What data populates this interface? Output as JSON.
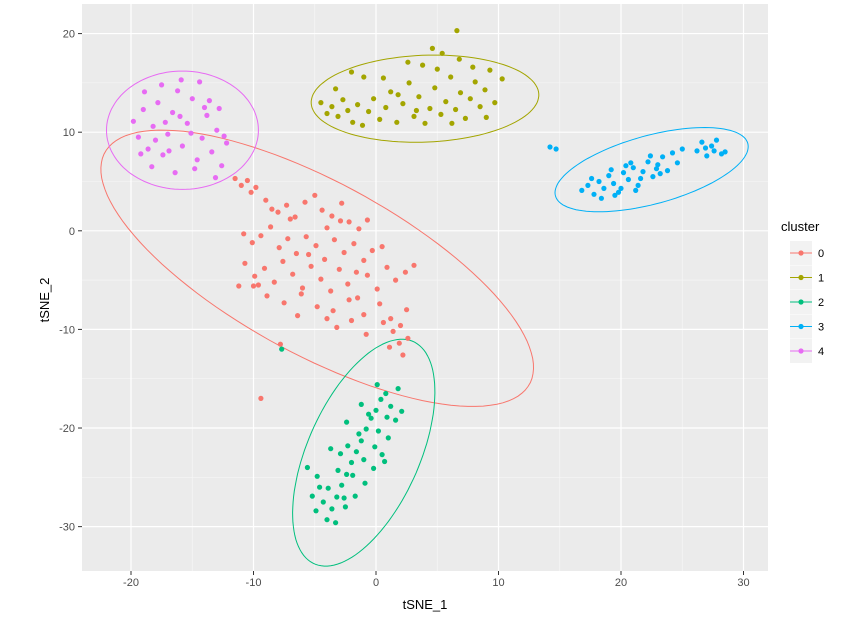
{
  "chart_data": {
    "type": "scatter",
    "xlabel": "tSNE_1",
    "ylabel": "tSNE_2",
    "xlim": [
      -24,
      32
    ],
    "ylim": [
      -34.5,
      23
    ],
    "x_ticks": [
      -20,
      -10,
      0,
      10,
      20,
      30
    ],
    "y_ticks": [
      -30,
      -20,
      -10,
      0,
      10,
      20
    ],
    "x_tick_labels": [
      "-20",
      "-10",
      "0",
      "10",
      "20",
      "30"
    ],
    "y_tick_labels": [
      "-30",
      "-20",
      "-10",
      "0",
      "10",
      "20"
    ],
    "grid": true,
    "background": "#ebebeb",
    "legend": {
      "title": "cluster",
      "position": "right"
    },
    "series": [
      {
        "name": "0",
        "color": "#F8766D",
        "ellipse": {
          "cx": -4.8,
          "cy": -3.8,
          "rx": 21.0,
          "ry": 8.2,
          "angle": -36
        },
        "points": [
          [
            -11.5,
            5.3
          ],
          [
            -11.0,
            4.6
          ],
          [
            -10.5,
            5.1
          ],
          [
            -10.2,
            3.9
          ],
          [
            -9.8,
            4.4
          ],
          [
            -9.0,
            3.1
          ],
          [
            -8.5,
            2.2
          ],
          [
            -8.0,
            1.9
          ],
          [
            -7.3,
            2.6
          ],
          [
            -6.6,
            1.4
          ],
          [
            -5.8,
            2.9
          ],
          [
            -5.0,
            3.6
          ],
          [
            -4.4,
            2.1
          ],
          [
            -3.6,
            1.5
          ],
          [
            -2.8,
            2.8
          ],
          [
            -2.2,
            0.9
          ],
          [
            -1.4,
            0.2
          ],
          [
            -0.7,
            1.1
          ],
          [
            -10.8,
            -0.3
          ],
          [
            -10.1,
            -1.2
          ],
          [
            -9.4,
            -0.5
          ],
          [
            -8.6,
            0.4
          ],
          [
            -7.9,
            -1.7
          ],
          [
            -7.2,
            -0.8
          ],
          [
            -6.5,
            -2.3
          ],
          [
            -5.7,
            -0.6
          ],
          [
            -4.9,
            -1.5
          ],
          [
            -4.2,
            -2.9
          ],
          [
            -3.4,
            -0.9
          ],
          [
            -2.6,
            -2.2
          ],
          [
            -1.8,
            -1.3
          ],
          [
            -1.0,
            -3.0
          ],
          [
            -0.3,
            -2.0
          ],
          [
            -10.7,
            -3.3
          ],
          [
            -9.9,
            -4.6
          ],
          [
            -9.1,
            -3.8
          ],
          [
            -8.3,
            -5.2
          ],
          [
            -7.6,
            -3.1
          ],
          [
            -6.8,
            -4.4
          ],
          [
            -6.0,
            -5.8
          ],
          [
            -5.3,
            -3.6
          ],
          [
            -4.5,
            -4.9
          ],
          [
            -3.7,
            -6.1
          ],
          [
            -3.0,
            -3.9
          ],
          [
            -2.3,
            -5.4
          ],
          [
            -1.5,
            -6.8
          ],
          [
            -0.7,
            -4.5
          ],
          [
            0.1,
            -5.9
          ],
          [
            0.9,
            -3.7
          ],
          [
            1.6,
            -5.0
          ],
          [
            2.4,
            -4.2
          ],
          [
            3.1,
            -3.5
          ],
          [
            -10.0,
            -5.6
          ],
          [
            -8.9,
            -6.6
          ],
          [
            -7.5,
            -7.3
          ],
          [
            -6.1,
            -6.4
          ],
          [
            -4.8,
            -7.7
          ],
          [
            -3.5,
            -8.1
          ],
          [
            -2.2,
            -7.0
          ],
          [
            -1.0,
            -8.5
          ],
          [
            0.3,
            -7.4
          ],
          [
            1.2,
            -8.9
          ],
          [
            2.0,
            -9.6
          ],
          [
            2.5,
            -8.0
          ],
          [
            1.4,
            -10.2
          ],
          [
            0.6,
            -9.3
          ],
          [
            -0.8,
            -10.5
          ],
          [
            -2.0,
            -9.1
          ],
          [
            -3.2,
            -9.8
          ],
          [
            -4.0,
            -8.9
          ],
          [
            1.9,
            -11.4
          ],
          [
            2.6,
            -10.9
          ],
          [
            1.1,
            -11.8
          ],
          [
            2.2,
            -12.6
          ],
          [
            -9.6,
            -5.5
          ],
          [
            -5.5,
            -2.4
          ],
          [
            -2.9,
            1.0
          ],
          [
            -7.0,
            1.2
          ],
          [
            -4.0,
            0.3
          ],
          [
            0.5,
            -1.6
          ],
          [
            -1.6,
            -4.2
          ],
          [
            -6.4,
            -8.6
          ],
          [
            -11.2,
            -5.6
          ],
          [
            -7.8,
            -11.5
          ],
          [
            -9.4,
            -17.0
          ]
        ]
      },
      {
        "name": "1",
        "color": "#A3A500",
        "ellipse": {
          "cx": 4.0,
          "cy": 13.4,
          "rx": 9.3,
          "ry": 4.4,
          "angle": 3
        },
        "points": [
          [
            -4.5,
            13.0
          ],
          [
            -4.0,
            11.9
          ],
          [
            -3.6,
            12.6
          ],
          [
            -3.1,
            11.6
          ],
          [
            -2.7,
            13.3
          ],
          [
            -2.3,
            12.2
          ],
          [
            -1.9,
            11.0
          ],
          [
            -1.5,
            12.8
          ],
          [
            -1.1,
            10.7
          ],
          [
            -0.6,
            12.1
          ],
          [
            -0.2,
            13.4
          ],
          [
            0.3,
            11.3
          ],
          [
            0.8,
            12.5
          ],
          [
            1.2,
            14.1
          ],
          [
            1.7,
            11.0
          ],
          [
            2.2,
            12.9
          ],
          [
            2.7,
            15.0
          ],
          [
            3.1,
            11.6
          ],
          [
            3.5,
            13.6
          ],
          [
            4.0,
            10.9
          ],
          [
            4.4,
            12.4
          ],
          [
            4.8,
            14.5
          ],
          [
            5.3,
            11.8
          ],
          [
            5.7,
            13.1
          ],
          [
            6.1,
            15.6
          ],
          [
            6.5,
            12.3
          ],
          [
            6.9,
            14.0
          ],
          [
            7.3,
            11.4
          ],
          [
            7.7,
            13.4
          ],
          [
            8.1,
            15.1
          ],
          [
            8.5,
            12.6
          ],
          [
            8.9,
            14.3
          ],
          [
            9.3,
            16.3
          ],
          [
            9.7,
            13.0
          ],
          [
            10.3,
            15.4
          ],
          [
            5.0,
            16.4
          ],
          [
            3.8,
            16.8
          ],
          [
            2.6,
            17.1
          ],
          [
            -2.0,
            16.1
          ],
          [
            -1.0,
            15.6
          ],
          [
            0.6,
            15.5
          ],
          [
            7.9,
            16.6
          ],
          [
            6.8,
            17.4
          ],
          [
            4.6,
            18.5
          ],
          [
            5.4,
            18.0
          ],
          [
            1.8,
            13.8
          ],
          [
            3.3,
            12.2
          ],
          [
            -3.3,
            14.4
          ],
          [
            9.0,
            11.5
          ],
          [
            6.2,
            10.9
          ],
          [
            6.6,
            20.3
          ]
        ]
      },
      {
        "name": "2",
        "color": "#00BF7D",
        "ellipse": {
          "cx": -1.0,
          "cy": -22.5,
          "rx": 12.0,
          "ry": 4.7,
          "angle": 72
        },
        "points": [
          [
            -4.0,
            -29.3
          ],
          [
            -3.6,
            -28.2
          ],
          [
            -3.2,
            -27.0
          ],
          [
            -2.8,
            -25.8
          ],
          [
            -2.4,
            -24.7
          ],
          [
            -2.0,
            -23.5
          ],
          [
            -1.6,
            -22.4
          ],
          [
            -1.2,
            -21.3
          ],
          [
            -0.8,
            -20.1
          ],
          [
            -0.4,
            -19.0
          ],
          [
            0.0,
            -18.2
          ],
          [
            0.4,
            -17.1
          ],
          [
            0.8,
            -16.5
          ],
          [
            1.2,
            -17.8
          ],
          [
            1.6,
            -19.2
          ],
          [
            1.0,
            -21.0
          ],
          [
            0.5,
            -22.7
          ],
          [
            -0.2,
            -24.1
          ],
          [
            -0.9,
            -25.6
          ],
          [
            -1.7,
            -26.9
          ],
          [
            -2.5,
            -28.0
          ],
          [
            -3.3,
            -29.6
          ],
          [
            -4.3,
            -27.5
          ],
          [
            -3.9,
            -26.1
          ],
          [
            -3.1,
            -24.3
          ],
          [
            -2.3,
            -21.8
          ],
          [
            -1.4,
            -20.6
          ],
          [
            -0.6,
            -18.6
          ],
          [
            0.2,
            -20.3
          ],
          [
            -4.6,
            -26.0
          ],
          [
            -5.6,
            -24.0
          ],
          [
            -4.8,
            -24.9
          ],
          [
            -2.9,
            -22.6
          ],
          [
            -1.9,
            -24.8
          ],
          [
            -1.0,
            -23.2
          ],
          [
            -0.1,
            -21.9
          ],
          [
            0.9,
            -18.9
          ],
          [
            1.8,
            -16.0
          ],
          [
            0.1,
            -15.6
          ],
          [
            -2.4,
            -19.4
          ],
          [
            -1.2,
            -17.6
          ],
          [
            -3.7,
            -22.1
          ],
          [
            -4.9,
            -28.4
          ],
          [
            -5.2,
            -26.9
          ],
          [
            -2.6,
            -27.1
          ],
          [
            0.7,
            -23.4
          ],
          [
            2.1,
            -18.3
          ],
          [
            -7.7,
            -12.0
          ]
        ]
      },
      {
        "name": "3",
        "color": "#00B0F6",
        "ellipse": {
          "cx": 22.5,
          "cy": 6.2,
          "rx": 8.3,
          "ry": 3.4,
          "angle": 20
        },
        "points": [
          [
            16.8,
            4.1
          ],
          [
            17.3,
            4.6
          ],
          [
            17.8,
            3.7
          ],
          [
            18.2,
            5.0
          ],
          [
            18.6,
            4.3
          ],
          [
            19.0,
            5.6
          ],
          [
            19.4,
            4.8
          ],
          [
            19.8,
            3.9
          ],
          [
            20.2,
            5.9
          ],
          [
            20.6,
            5.2
          ],
          [
            21.0,
            6.4
          ],
          [
            21.4,
            4.6
          ],
          [
            21.8,
            6.0
          ],
          [
            22.2,
            7.0
          ],
          [
            22.6,
            5.5
          ],
          [
            23.0,
            6.7
          ],
          [
            23.4,
            7.5
          ],
          [
            23.8,
            6.1
          ],
          [
            24.2,
            7.9
          ],
          [
            24.6,
            6.9
          ],
          [
            25.0,
            8.3
          ],
          [
            17.6,
            5.3
          ],
          [
            18.4,
            3.3
          ],
          [
            19.2,
            6.2
          ],
          [
            20.0,
            4.3
          ],
          [
            20.8,
            6.9
          ],
          [
            21.6,
            5.3
          ],
          [
            22.4,
            7.6
          ],
          [
            23.2,
            5.8
          ],
          [
            26.2,
            8.1
          ],
          [
            26.6,
            9.0
          ],
          [
            27.0,
            7.6
          ],
          [
            27.4,
            8.6
          ],
          [
            27.8,
            9.2
          ],
          [
            28.2,
            7.8
          ],
          [
            26.9,
            8.4
          ],
          [
            27.6,
            8.1
          ],
          [
            28.5,
            8.0
          ],
          [
            14.2,
            8.5
          ],
          [
            14.7,
            8.3
          ],
          [
            19.5,
            3.6
          ],
          [
            20.4,
            6.6
          ],
          [
            22.9,
            6.3
          ],
          [
            21.2,
            4.1
          ]
        ]
      },
      {
        "name": "4",
        "color": "#E76BF3",
        "ellipse": {
          "cx": -15.8,
          "cy": 10.2,
          "rx": 6.2,
          "ry": 6.0,
          "angle": 0
        },
        "points": [
          [
            -19.8,
            11.1
          ],
          [
            -19.4,
            9.5
          ],
          [
            -19.0,
            12.3
          ],
          [
            -18.6,
            8.3
          ],
          [
            -18.2,
            10.6
          ],
          [
            -17.8,
            13.0
          ],
          [
            -17.4,
            7.7
          ],
          [
            -17.0,
            9.8
          ],
          [
            -16.6,
            12.0
          ],
          [
            -16.2,
            14.2
          ],
          [
            -15.8,
            8.6
          ],
          [
            -15.4,
            10.9
          ],
          [
            -15.0,
            13.4
          ],
          [
            -14.6,
            7.2
          ],
          [
            -14.2,
            9.4
          ],
          [
            -13.8,
            11.7
          ],
          [
            -13.4,
            8.0
          ],
          [
            -13.0,
            10.2
          ],
          [
            -12.6,
            6.6
          ],
          [
            -12.2,
            8.9
          ],
          [
            -18.9,
            14.1
          ],
          [
            -17.5,
            14.8
          ],
          [
            -15.9,
            15.3
          ],
          [
            -14.4,
            15.1
          ],
          [
            -18.3,
            6.5
          ],
          [
            -16.4,
            5.9
          ],
          [
            -14.8,
            6.3
          ],
          [
            -13.1,
            5.4
          ],
          [
            -19.2,
            7.8
          ],
          [
            -12.8,
            12.4
          ],
          [
            -16.0,
            11.6
          ],
          [
            -17.2,
            11.0
          ],
          [
            -15.1,
            9.9
          ],
          [
            -13.6,
            13.2
          ],
          [
            -18.0,
            9.2
          ],
          [
            -14.0,
            12.5
          ],
          [
            -16.9,
            8.1
          ],
          [
            -12.4,
            9.6
          ]
        ]
      }
    ]
  }
}
